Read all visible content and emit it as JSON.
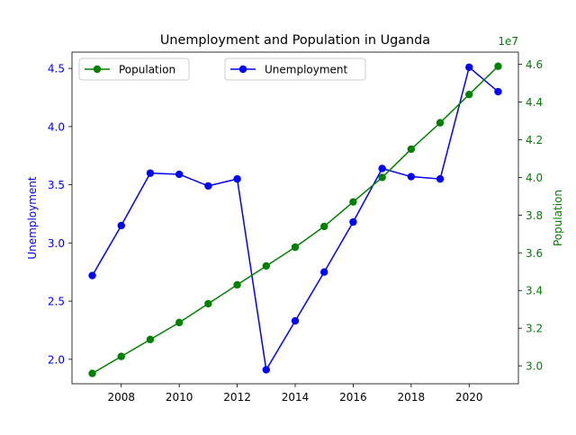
{
  "chart_data": {
    "type": "line",
    "title": "Unemployment and Population in Uganda",
    "xlabel": "",
    "x": [
      2007,
      2008,
      2009,
      2010,
      2011,
      2012,
      2013,
      2014,
      2015,
      2016,
      2017,
      2018,
      2019,
      2020,
      2021
    ],
    "xlim": [
      2006.3,
      2021.7
    ],
    "xticks": [
      2008,
      2010,
      2012,
      2014,
      2016,
      2018,
      2020
    ],
    "y_left": {
      "label": "Unemployment",
      "color": "#0000ff",
      "ylim": [
        1.79,
        4.64
      ],
      "ticks": [
        2.0,
        2.5,
        3.0,
        3.5,
        4.0,
        4.5
      ],
      "tick_labels": [
        "2.0",
        "2.5",
        "3.0",
        "3.5",
        "4.0",
        "4.5"
      ]
    },
    "y_right": {
      "label": "Population",
      "color": "#008000",
      "offset_label": "1e7",
      "ylim": [
        29050000,
        46650000
      ],
      "ticks": [
        30000000,
        32000000,
        34000000,
        36000000,
        38000000,
        40000000,
        42000000,
        44000000,
        46000000
      ],
      "tick_labels": [
        "3.0",
        "3.2",
        "3.4",
        "3.6",
        "3.8",
        "4.0",
        "4.2",
        "4.4",
        "4.6"
      ]
    },
    "series": [
      {
        "name": "Unemployment",
        "axis": "left",
        "color": "#0000ff",
        "marker": "circle",
        "values": [
          2.72,
          3.15,
          3.6,
          3.59,
          3.49,
          3.55,
          1.91,
          2.33,
          2.75,
          3.18,
          3.64,
          3.57,
          3.55,
          4.51,
          4.3
        ]
      },
      {
        "name": "Population",
        "axis": "right",
        "color": "#008000",
        "marker": "circle",
        "values": [
          29600000,
          30500000,
          31400000,
          32300000,
          33300000,
          34300000,
          35300000,
          36300000,
          37400000,
          38700000,
          40000000,
          41500000,
          42900000,
          44400000,
          45900000
        ]
      }
    ],
    "legends": [
      {
        "entries": [
          "Population"
        ],
        "placement": "upper-left"
      },
      {
        "entries": [
          "Unemployment"
        ],
        "placement": "upper-center"
      }
    ],
    "grid": false
  }
}
